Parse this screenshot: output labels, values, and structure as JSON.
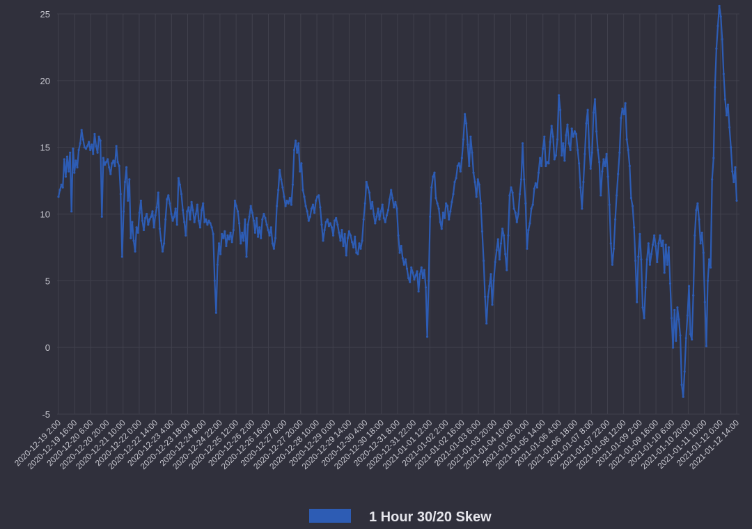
{
  "colors": {
    "background": "#30303c",
    "grid": "#41414d",
    "series": "#2d5cb4",
    "text": "#c8c8d0"
  },
  "chart_data": {
    "type": "line",
    "title": "",
    "xlabel": "",
    "ylabel": "",
    "ylim": [
      -5,
      25
    ],
    "yticks": [
      "-5",
      "0",
      "5",
      "10",
      "15",
      "20",
      "25"
    ],
    "grid": true,
    "legend_position": "bottom",
    "x_tick_labels": [
      "2020-12-19 2:00",
      "2020-12-19 16:00",
      "2020-12-20 6:00",
      "2020-12-20 20:00",
      "2020-12-21 10:00",
      "2020-12-22 0:00",
      "2020-12-22 14:00",
      "2020-12-23 4:00",
      "2020-12-23 18:00",
      "2020-12-24 8:00",
      "2020-12-24 22:00",
      "2020-12-25 12:00",
      "2020-12-26 2:00",
      "2020-12-26 16:00",
      "2020-12-27 6:00",
      "2020-12-27 20:00",
      "2020-12-28 10:00",
      "2020-12-29 0:00",
      "2020-12-29 14:00",
      "2020-12-30 4:00",
      "2020-12-30 18:00",
      "2020-12-31 8:00",
      "2020-12-31 22:00",
      "2021-01-01 12:00",
      "2021-01-02 2:00",
      "2021-01-02 16:00",
      "2021-01-03 6:00",
      "2021-01-03 20:00",
      "2021-01-04 10:00",
      "2021-01-05 0:00",
      "2021-01-05 14:00",
      "2021-01-06 4:00",
      "2021-01-06 18:00",
      "2021-01-07 8:00",
      "2021-01-07 22:00",
      "2021-01-08 12:00",
      "2021-01-09 2:00",
      "2021-01-09 16:00",
      "2021-01-10 6:00",
      "2021-01-10 20:00",
      "2021-01-11 10:00",
      "2021-01-12 0:00",
      "2021-01-12 14:00"
    ],
    "series": [
      {
        "name": "1 Hour 30/20 Skew",
        "color": "#2d5cb4",
        "values": [
          11.3,
          11.8,
          12.2,
          12.0,
          14.1,
          12.8,
          14.3,
          13.2,
          14.6,
          10.2,
          14.9,
          13.1,
          14.0,
          13.5,
          14.8,
          15.3,
          16.3,
          15.6,
          15.0,
          14.9,
          15.1,
          15.4,
          14.8,
          15.2,
          14.5,
          16.0,
          15.1,
          14.6,
          15.8,
          15.5,
          9.8,
          14.2,
          13.7,
          13.9,
          14.1,
          13.5,
          13.0,
          13.8,
          14.0,
          13.6,
          15.1,
          13.9,
          13.6,
          11.5,
          6.8,
          10.2,
          12.4,
          13.5,
          11.0,
          12.6,
          8.2,
          9.4,
          8.0,
          7.2,
          9.0,
          8.6,
          10.1,
          11.0,
          9.5,
          8.8,
          9.7,
          10.0,
          9.2,
          9.6,
          9.8,
          10.2,
          9.0,
          9.9,
          10.5,
          11.6,
          8.9,
          8.0,
          7.2,
          7.8,
          9.6,
          11.1,
          11.4,
          10.8,
          10.0,
          9.5,
          9.8,
          10.4,
          9.2,
          12.7,
          12.2,
          11.5,
          10.3,
          9.4,
          8.4,
          10.2,
          10.5,
          9.6,
          10.9,
          10.3,
          9.4,
          10.0,
          10.7,
          9.5,
          9.0,
          10.3,
          10.8,
          9.4,
          9.6,
          9.2,
          9.5,
          9.3,
          9.0,
          8.5,
          5.0,
          2.6,
          6.2,
          7.8,
          7.0,
          8.5,
          8.2,
          8.7,
          7.6,
          8.4,
          8.1,
          8.6,
          7.9,
          8.8,
          11.0,
          10.6,
          10.2,
          9.3,
          7.8,
          8.6,
          8.0,
          9.6,
          6.8,
          9.2,
          9.8,
          10.6,
          10.1,
          9.5,
          8.6,
          9.7,
          8.3,
          9.0,
          8.2,
          9.6,
          10.0,
          9.7,
          9.2,
          8.8,
          8.4,
          9.0,
          7.8,
          7.4,
          8.2,
          10.6,
          11.8,
          13.3,
          12.6,
          12.0,
          11.3,
          10.6,
          11.0,
          10.8,
          11.2,
          10.7,
          12.2,
          14.8,
          15.5,
          14.6,
          15.3,
          13.2,
          13.8,
          11.8,
          11.3,
          10.6,
          10.2,
          9.5,
          9.8,
          10.4,
          10.7,
          10.1,
          11.0,
          11.3,
          11.4,
          10.5,
          9.2,
          8.0,
          8.8,
          9.4,
          9.6,
          9.1,
          9.3,
          9.0,
          8.4,
          9.5,
          9.7,
          9.2,
          8.6,
          8.0,
          8.8,
          7.6,
          8.5,
          6.9,
          8.2,
          8.7,
          8.4,
          7.9,
          7.5,
          8.3,
          7.1,
          7.0,
          7.8,
          7.4,
          8.0,
          9.6,
          10.8,
          12.4,
          12.0,
          11.6,
          10.4,
          10.9,
          10.0,
          9.3,
          9.8,
          10.4,
          9.6,
          10.2,
          10.7,
          9.7,
          9.4,
          9.9,
          10.3,
          11.1,
          11.8,
          11.2,
          10.5,
          10.9,
          10.4,
          8.4,
          7.1,
          7.6,
          6.7,
          6.2,
          6.6,
          5.9,
          5.2,
          4.9,
          6.0,
          5.6,
          5.1,
          5.4,
          5.7,
          4.2,
          5.5,
          6.0,
          5.2,
          5.8,
          4.5,
          0.8,
          5.0,
          9.8,
          12.0,
          12.8,
          13.1,
          11.2,
          10.8,
          10.4,
          9.4,
          8.9,
          10.1,
          9.7,
          10.8,
          10.6,
          9.6,
          10.2,
          10.9,
          11.5,
          12.4,
          12.7,
          13.6,
          13.8,
          13.2,
          14.2,
          15.6,
          17.5,
          16.8,
          15.2,
          13.6,
          15.8,
          14.6,
          13.1,
          12.4,
          11.3,
          12.6,
          12.2,
          10.8,
          8.7,
          6.5,
          3.8,
          1.8,
          3.8,
          4.6,
          5.5,
          3.2,
          5.0,
          6.4,
          7.3,
          8.1,
          6.6,
          7.8,
          8.9,
          8.4,
          7.0,
          5.8,
          8.4,
          11.4,
          12.0,
          11.6,
          10.4,
          10.1,
          9.4,
          10.0,
          11.5,
          12.6,
          15.3,
          12.6,
          10.8,
          7.4,
          8.8,
          9.3,
          10.4,
          10.7,
          11.9,
          12.3,
          12.0,
          13.1,
          14.2,
          13.6,
          14.9,
          15.8,
          13.6,
          13.9,
          13.8,
          15.4,
          16.6,
          15.8,
          14.1,
          14.4,
          15.6,
          18.9,
          17.8,
          14.4,
          15.3,
          14.0,
          15.9,
          16.7,
          15.3,
          14.8,
          16.4,
          15.8,
          16.2,
          16.0,
          14.8,
          13.8,
          12.0,
          10.4,
          12.4,
          14.5,
          16.8,
          17.8,
          15.0,
          13.4,
          14.6,
          17.6,
          18.6,
          16.2,
          14.8,
          13.9,
          11.4,
          13.2,
          14.1,
          13.6,
          14.5,
          12.8,
          10.7,
          7.8,
          6.2,
          7.4,
          9.6,
          11.4,
          13.0,
          14.6,
          17.2,
          17.9,
          17.5,
          18.3,
          15.6,
          14.8,
          13.6,
          11.2,
          10.6,
          9.0,
          6.5,
          3.4,
          6.8,
          8.5,
          6.6,
          3.0,
          2.2,
          4.5,
          6.6,
          7.8,
          6.2,
          7.0,
          7.7,
          8.4,
          7.6,
          6.4,
          7.8,
          8.4,
          7.6,
          8.0,
          5.6,
          7.7,
          6.2,
          7.5,
          4.8,
          2.2,
          0.0,
          2.8,
          0.5,
          3.0,
          2.1,
          0.9,
          -2.8,
          -3.7,
          -1.8,
          0.7,
          2.4,
          4.6,
          1.0,
          0.6,
          3.9,
          8.4,
          10.3,
          10.8,
          9.6,
          7.8,
          8.6,
          7.1,
          3.4,
          0.1,
          5.0,
          6.6,
          6.0,
          12.6,
          14.2,
          19.5,
          22.4,
          24.1,
          25.6,
          24.8,
          23.1,
          20.5,
          18.6,
          17.4,
          18.2,
          16.5,
          15.0,
          13.2,
          12.4,
          13.5,
          11.0
        ]
      }
    ]
  }
}
